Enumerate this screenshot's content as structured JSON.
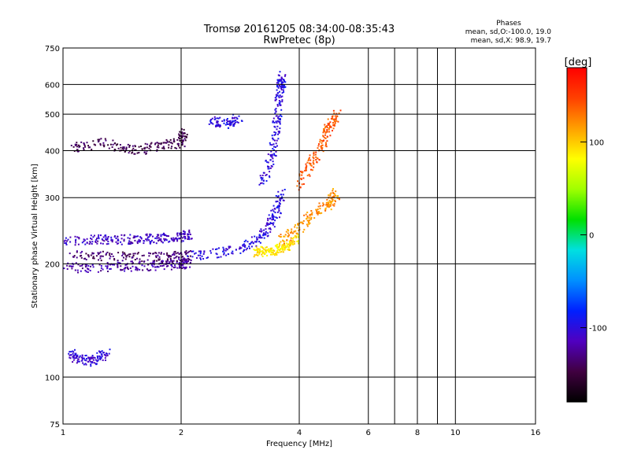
{
  "chart_data": {
    "type": "scatter",
    "title": "Tromsø 20161205 08:34:00-08:35:43",
    "subtitle": "RwPretec (8p)",
    "xlabel": "Frequency [MHz]",
    "ylabel": "Stationary phase Virtual Height [km]",
    "x_scale": "log2",
    "y_scale": "log",
    "xlim": [
      1,
      16
    ],
    "ylim": [
      75,
      750
    ],
    "x_ticks": [
      1,
      2,
      4,
      6,
      8,
      10,
      16
    ],
    "x_minor": [
      7,
      9
    ],
    "y_ticks": [
      75,
      100,
      200,
      300,
      400,
      500,
      600,
      750
    ],
    "grid": true,
    "legend_header": "Phases",
    "legend_lines": [
      "mean, sd,O:-100.0, 19.0",
      "mean, sd,X:  98.9, 19.7"
    ],
    "colorbar": {
      "unit": "[deg]",
      "range": [
        -180,
        180
      ],
      "ticks": [
        100,
        0,
        -100
      ],
      "colors": [
        "#000000",
        "#400040",
        "#5000c0",
        "#0020ff",
        "#0090ff",
        "#00e0e0",
        "#00e000",
        "#a0ff00",
        "#ffff00",
        "#ffa000",
        "#ff4000",
        "#ff0000"
      ]
    },
    "series": [
      {
        "x": [
          1.0,
          1.25,
          1.5,
          1.75,
          2.0,
          2.1
        ],
        "y": [
          195,
          196,
          197,
          198,
          200,
          201
        ],
        "phase": -120
      },
      {
        "x": [
          1.0,
          1.2,
          1.4,
          1.6,
          1.8,
          2.0,
          2.1
        ],
        "y": [
          230,
          232,
          232,
          233,
          234,
          236,
          240
        ],
        "phase": -110
      },
      {
        "x": [
          1.05,
          1.3,
          1.6,
          1.9,
          2.1
        ],
        "y": [
          210,
          210,
          208,
          208,
          212
        ],
        "phase": -135
      },
      {
        "x": [
          1.05,
          1.25,
          1.5,
          1.75,
          2.0,
          2.05
        ],
        "y": [
          405,
          420,
          400,
          410,
          420,
          450
        ],
        "phase": -145
      },
      {
        "x": [
          2.1,
          2.6,
          3.0,
          3.3,
          3.5,
          3.6
        ],
        "y": [
          210,
          215,
          225,
          245,
          275,
          310
        ],
        "phase": -100
      },
      {
        "x": [
          3.1,
          3.3,
          3.5,
          3.7,
          4.0
        ],
        "y": [
          215,
          216,
          218,
          222,
          235
        ],
        "phase": 90
      },
      {
        "x": [
          3.2,
          3.4,
          3.5,
          3.55,
          3.6,
          3.6
        ],
        "y": [
          320,
          380,
          460,
          540,
          600,
          630
        ],
        "phase": -100
      },
      {
        "x": [
          3.6,
          4.0,
          4.4,
          4.8,
          5.0
        ],
        "y": [
          230,
          250,
          275,
          290,
          310
        ],
        "phase": 120
      },
      {
        "x": [
          4.0,
          4.3,
          4.6,
          4.8,
          5.0
        ],
        "y": [
          320,
          370,
          420,
          470,
          500
        ],
        "phase": 140
      },
      {
        "x": [
          2.4,
          2.6,
          2.8
        ],
        "y": [
          480,
          470,
          490
        ],
        "phase": -100
      },
      {
        "x": [
          1.05,
          1.1,
          1.2,
          1.3
        ],
        "y": [
          115,
          112,
          110,
          116
        ],
        "phase": -105
      }
    ]
  }
}
